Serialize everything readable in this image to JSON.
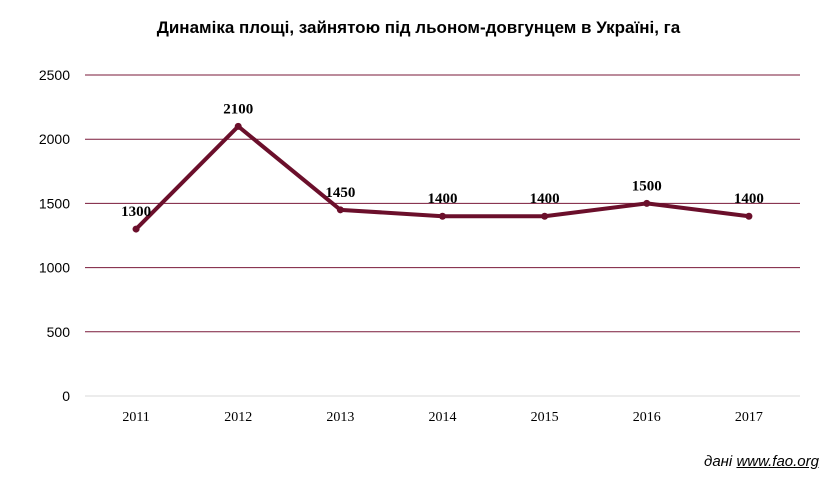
{
  "chart_data": {
    "type": "line",
    "title": "Динаміка площі, зайнятою під льоном-довгунцем в Україні, га",
    "categories": [
      "2011",
      "2012",
      "2013",
      "2014",
      "2015",
      "2016",
      "2017"
    ],
    "values": [
      1300,
      2100,
      1450,
      1400,
      1400,
      1500,
      1400
    ],
    "data_labels": [
      "1300",
      "2100",
      "1450",
      "1400",
      "1400",
      "1500",
      "1400"
    ],
    "yticks": [
      "0",
      "500",
      "1000",
      "1500",
      "2000",
      "2500"
    ],
    "ylim": [
      0,
      2500
    ],
    "grid": true,
    "legend": "none",
    "line_color": "#6b0f2b",
    "grid_color": "#7a1a3a"
  },
  "source": {
    "prefix": "дані",
    "link": "www.fao.org"
  }
}
